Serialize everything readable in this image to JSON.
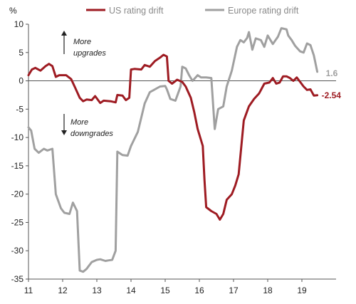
{
  "chart_data": {
    "type": "line",
    "unit_label": "%",
    "ylim": [
      -35,
      10
    ],
    "yticks": [
      10,
      5,
      0,
      -5,
      -10,
      -15,
      -20,
      -25,
      -30,
      -35
    ],
    "xlim": [
      11,
      20
    ],
    "xticks": [
      11,
      12,
      13,
      14,
      15,
      16,
      17,
      18,
      19
    ],
    "annotations": {
      "upgrades": [
        "More",
        "upgrades"
      ],
      "downgrades": [
        "More",
        "downgrades"
      ]
    },
    "end_labels": {
      "us": "-2.54",
      "europe": "1.6"
    },
    "series": [
      {
        "name": "US rating drift",
        "color": "#9e1b22",
        "points": [
          [
            11.0,
            1.0
          ],
          [
            11.1,
            2.0
          ],
          [
            11.2,
            2.3
          ],
          [
            11.35,
            1.8
          ],
          [
            11.5,
            2.6
          ],
          [
            11.6,
            3.0
          ],
          [
            11.7,
            2.6
          ],
          [
            11.8,
            0.7
          ],
          [
            11.9,
            1.0
          ],
          [
            12.1,
            1.0
          ],
          [
            12.25,
            0.3
          ],
          [
            12.35,
            -1.0
          ],
          [
            12.5,
            -3.0
          ],
          [
            12.6,
            -3.6
          ],
          [
            12.7,
            -3.3
          ],
          [
            12.85,
            -3.4
          ],
          [
            12.95,
            -2.7
          ],
          [
            13.1,
            -3.9
          ],
          [
            13.2,
            -3.5
          ],
          [
            13.4,
            -3.6
          ],
          [
            13.55,
            -3.8
          ],
          [
            13.6,
            -2.5
          ],
          [
            13.75,
            -2.6
          ],
          [
            13.85,
            -3.4
          ],
          [
            13.95,
            -3.0
          ],
          [
            14.0,
            2.0
          ],
          [
            14.1,
            2.1
          ],
          [
            14.3,
            2.0
          ],
          [
            14.4,
            2.8
          ],
          [
            14.55,
            2.5
          ],
          [
            14.7,
            3.5
          ],
          [
            14.85,
            4.1
          ],
          [
            14.95,
            4.6
          ],
          [
            15.05,
            4.3
          ],
          [
            15.1,
            0.0
          ],
          [
            15.2,
            -0.5
          ],
          [
            15.35,
            0.2
          ],
          [
            15.5,
            -0.2
          ],
          [
            15.6,
            -1.0
          ],
          [
            15.75,
            -3.0
          ],
          [
            15.85,
            -5.5
          ],
          [
            15.95,
            -8.5
          ],
          [
            16.1,
            -11.5
          ],
          [
            16.15,
            -17.5
          ],
          [
            16.2,
            -22.3
          ],
          [
            16.35,
            -23.0
          ],
          [
            16.5,
            -23.5
          ],
          [
            16.6,
            -24.5
          ],
          [
            16.7,
            -23.5
          ],
          [
            16.8,
            -21.0
          ],
          [
            16.95,
            -20.0
          ],
          [
            17.05,
            -18.5
          ],
          [
            17.15,
            -16.5
          ],
          [
            17.3,
            -7.0
          ],
          [
            17.45,
            -4.5
          ],
          [
            17.6,
            -3.2
          ],
          [
            17.75,
            -2.2
          ],
          [
            17.9,
            -0.5
          ],
          [
            18.05,
            -0.3
          ],
          [
            18.15,
            0.5
          ],
          [
            18.25,
            -0.5
          ],
          [
            18.35,
            -0.3
          ],
          [
            18.45,
            0.8
          ],
          [
            18.55,
            0.8
          ],
          [
            18.65,
            0.5
          ],
          [
            18.75,
            0.0
          ],
          [
            18.85,
            0.6
          ],
          [
            18.95,
            -0.2
          ],
          [
            19.05,
            -1.0
          ],
          [
            19.15,
            -1.6
          ],
          [
            19.25,
            -1.5
          ],
          [
            19.35,
            -2.6
          ],
          [
            19.45,
            -2.54
          ]
        ]
      },
      {
        "name": "Europe rating drift",
        "color": "#a0a0a0",
        "points": [
          [
            11.0,
            -8.2
          ],
          [
            11.08,
            -8.8
          ],
          [
            11.18,
            -12.0
          ],
          [
            11.3,
            -12.7
          ],
          [
            11.45,
            -12.0
          ],
          [
            11.55,
            -12.3
          ],
          [
            11.7,
            -12.0
          ],
          [
            11.8,
            -20.0
          ],
          [
            11.95,
            -22.5
          ],
          [
            12.05,
            -23.3
          ],
          [
            12.2,
            -23.5
          ],
          [
            12.3,
            -21.5
          ],
          [
            12.42,
            -23.0
          ],
          [
            12.5,
            -33.5
          ],
          [
            12.6,
            -33.7
          ],
          [
            12.7,
            -33.2
          ],
          [
            12.85,
            -32.0
          ],
          [
            13.0,
            -31.6
          ],
          [
            13.1,
            -31.5
          ],
          [
            13.25,
            -31.8
          ],
          [
            13.35,
            -31.7
          ],
          [
            13.45,
            -31.6
          ],
          [
            13.55,
            -30.0
          ],
          [
            13.6,
            -12.5
          ],
          [
            13.75,
            -13.1
          ],
          [
            13.9,
            -13.2
          ],
          [
            14.0,
            -11.5
          ],
          [
            14.2,
            -9.0
          ],
          [
            14.3,
            -6.5
          ],
          [
            14.4,
            -4.0
          ],
          [
            14.55,
            -2.0
          ],
          [
            14.7,
            -1.5
          ],
          [
            14.85,
            -1.0
          ],
          [
            15.0,
            -0.9
          ],
          [
            15.05,
            -1.5
          ],
          [
            15.15,
            -3.2
          ],
          [
            15.3,
            -3.5
          ],
          [
            15.45,
            -1.0
          ],
          [
            15.5,
            2.5
          ],
          [
            15.6,
            2.2
          ],
          [
            15.7,
            1.0
          ],
          [
            15.8,
            0.0
          ],
          [
            15.95,
            1.0
          ],
          [
            16.05,
            0.6
          ],
          [
            16.2,
            0.6
          ],
          [
            16.35,
            0.5
          ],
          [
            16.45,
            -8.5
          ],
          [
            16.55,
            -5.0
          ],
          [
            16.7,
            -4.5
          ],
          [
            16.8,
            -1.0
          ],
          [
            16.95,
            1.8
          ],
          [
            17.1,
            6.0
          ],
          [
            17.2,
            7.2
          ],
          [
            17.3,
            6.8
          ],
          [
            17.4,
            7.6
          ],
          [
            17.45,
            8.6
          ],
          [
            17.55,
            5.5
          ],
          [
            17.65,
            7.5
          ],
          [
            17.8,
            7.2
          ],
          [
            17.9,
            6.0
          ],
          [
            18.0,
            8.0
          ],
          [
            18.15,
            6.5
          ],
          [
            18.3,
            7.8
          ],
          [
            18.4,
            9.3
          ],
          [
            18.55,
            9.1
          ],
          [
            18.6,
            8.0
          ],
          [
            18.7,
            7.2
          ],
          [
            18.8,
            6.2
          ],
          [
            18.95,
            5.2
          ],
          [
            19.05,
            5.0
          ],
          [
            19.15,
            6.6
          ],
          [
            19.25,
            6.3
          ],
          [
            19.35,
            4.5
          ],
          [
            19.45,
            1.6
          ]
        ]
      }
    ]
  }
}
